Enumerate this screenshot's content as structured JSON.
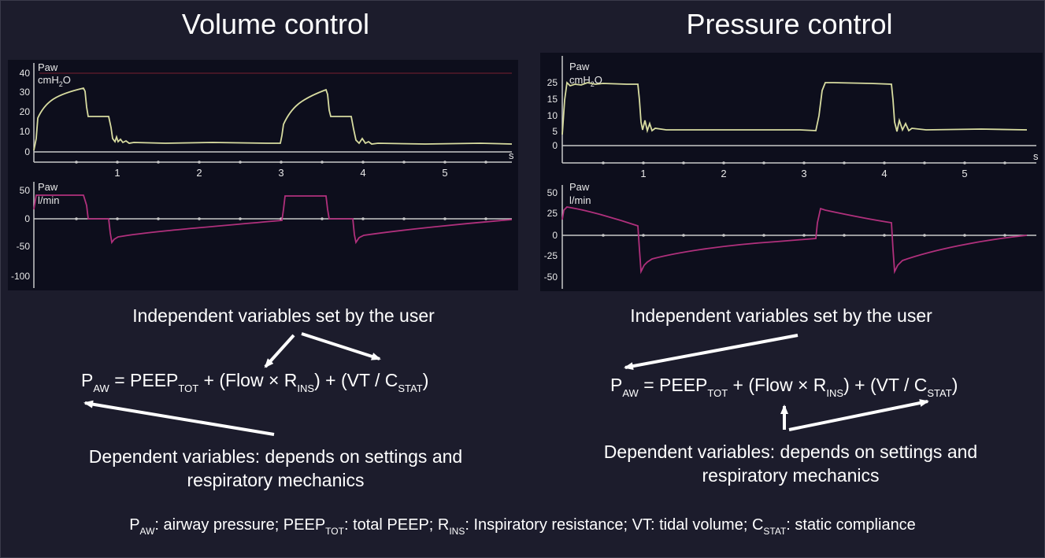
{
  "titles": {
    "left": "Volume control",
    "right": "Pressure control"
  },
  "plots": {
    "left_pressure": {
      "labels": [
        "Paw",
        "cmH",
        "2",
        "O"
      ],
      "y_ticks": [
        "40",
        "30",
        "20",
        "10",
        "0"
      ],
      "x_ticks": [
        "1",
        "2",
        "3",
        "4",
        "5"
      ],
      "x_unit": "s"
    },
    "left_flow": {
      "labels": [
        "Paw",
        "l/min"
      ],
      "y_ticks": [
        "50",
        "0",
        "-50",
        "-100"
      ]
    },
    "right_pressure": {
      "labels": [
        "Paw",
        "cmH",
        "2",
        "O"
      ],
      "y_ticks": [
        "25",
        "15",
        "10",
        "5",
        "0"
      ],
      "x_ticks": [
        "1",
        "2",
        "3",
        "4",
        "5"
      ],
      "x_unit": "s"
    },
    "right_flow": {
      "labels": [
        "Paw",
        "l/min"
      ],
      "y_ticks": [
        "50",
        "25",
        "0",
        "-25",
        "-50"
      ]
    }
  },
  "notes": {
    "independent_left": "Independent variables set by the user",
    "independent_right": "Independent variables set by the user",
    "dependent_left_1": "Dependent variables: depends on settings and",
    "dependent_left_2": "respiratory mechanics",
    "dependent_right_1": "Dependent variables: depends on settings and",
    "dependent_right_2": "respiratory mechanics"
  },
  "equation": {
    "P": "P",
    "AW": "AW",
    "eq": " = PEEP",
    "TOT": "TOT",
    "plus_flow": " + (Flow × R",
    "INS": "INS",
    "plus_vt": ") + (VT / C",
    "STAT": "STAT",
    "close": ")"
  },
  "legend": {
    "p": "P",
    "aw": "AW",
    "t1": ": airway pressure; PEEP",
    "tot": "TOT",
    "t2": ": total PEEP; R",
    "ins": "INS",
    "t3": ": Inspiratory resistance; VT: tidal volume; C",
    "stat": "STAT",
    "t4": ": static compliance"
  },
  "colors": {
    "pressure_trace": "#d8dca0",
    "flow_trace": "#b0307c",
    "axis": "#c8c8c8",
    "panel": "#0d0e1c",
    "background": "#1c1c2c"
  }
}
